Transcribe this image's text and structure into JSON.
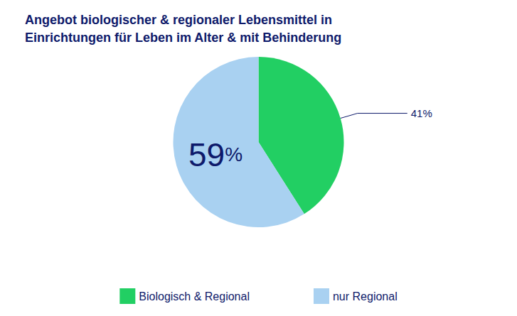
{
  "chart_data": {
    "type": "pie",
    "title": "Angebot biologischer & regionaler Lebensmittel in\nEinrichtungen für Leben im Alter & mit Behinderung",
    "categories": [
      "Biologisch & Regional",
      "nur Regional"
    ],
    "values": [
      41,
      59
    ],
    "value_labels": [
      "41%",
      "59%"
    ],
    "colors": [
      "#22cf63",
      "#a9d1f1"
    ],
    "data_labels": true,
    "legend": "bottom"
  }
}
